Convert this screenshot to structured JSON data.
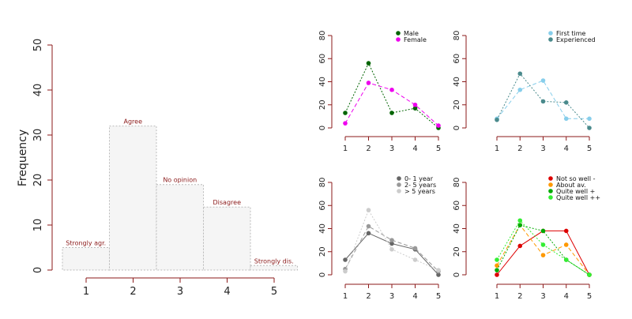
{
  "chart_data": [
    {
      "type": "bar",
      "title": "",
      "xlabel": "",
      "ylabel": "Frequency",
      "categories": [
        "1",
        "2",
        "3",
        "4",
        "5"
      ],
      "values": [
        5,
        32,
        19,
        14,
        1
      ],
      "bar_labels": [
        "Strongly agr.",
        "Agree",
        "No opinion",
        "Disagree",
        "Strongly dis."
      ],
      "ylim": [
        0,
        50
      ],
      "yticks": [
        0,
        10,
        20,
        30,
        40,
        50
      ],
      "colors": {
        "fill": "#f5f5f5",
        "border": "#bbbbbb",
        "label": "#8b1a1a",
        "axis": "#8b1a1a"
      }
    },
    {
      "type": "line",
      "x": [
        1,
        2,
        3,
        4,
        5
      ],
      "ylim": [
        0,
        80
      ],
      "yticks": [
        0,
        20,
        40,
        60,
        80
      ],
      "legend_position": "top-right",
      "series": [
        {
          "name": "Male",
          "values": [
            13,
            56,
            13,
            17,
            0
          ],
          "color": "#006400",
          "dash": "dotted"
        },
        {
          "name": "Female",
          "values": [
            4,
            39,
            33,
            20,
            2
          ],
          "color": "#ee00ee",
          "dash": "dashed"
        }
      ]
    },
    {
      "type": "line",
      "x": [
        1,
        2,
        3,
        4,
        5
      ],
      "ylim": [
        0,
        80
      ],
      "yticks": [
        0,
        20,
        40,
        60,
        80
      ],
      "legend_position": "top-right",
      "series": [
        {
          "name": "First time",
          "values": [
            8,
            33,
            41,
            8,
            8
          ],
          "color": "#87ceeb",
          "dash": "dashed"
        },
        {
          "name": "Experienced",
          "values": [
            7,
            47,
            23,
            22,
            0
          ],
          "color": "#4a8a8c",
          "dash": "dotted"
        }
      ]
    },
    {
      "type": "line",
      "x": [
        1,
        2,
        3,
        4,
        5
      ],
      "ylim": [
        0,
        80
      ],
      "yticks": [
        0,
        20,
        40,
        60,
        80
      ],
      "legend_position": "top-right",
      "series": [
        {
          "name": "0- 1 year",
          "values": [
            13,
            36,
            27,
            22,
            0
          ],
          "color": "#666666",
          "dash": "solid"
        },
        {
          "name": "2- 5 years",
          "values": [
            5,
            42,
            30,
            23,
            3
          ],
          "color": "#999999",
          "dash": "dashed"
        },
        {
          "name": "> 5 years",
          "values": [
            3,
            56,
            22,
            13,
            4
          ],
          "color": "#cccccc",
          "dash": "dotted"
        }
      ]
    },
    {
      "type": "line",
      "x": [
        1,
        2,
        3,
        4,
        5
      ],
      "ylim": [
        0,
        80
      ],
      "yticks": [
        0,
        20,
        40,
        60,
        80
      ],
      "legend_position": "top-right",
      "series": [
        {
          "name": "Not so well -",
          "values": [
            0,
            25,
            38,
            38,
            0
          ],
          "color": "#dd0000",
          "dash": "solid"
        },
        {
          "name": "About av.",
          "values": [
            8,
            43,
            17,
            26,
            0
          ],
          "color": "#ff9900",
          "dash": "dashed"
        },
        {
          "name": "Quite well +",
          "values": [
            4,
            43,
            38,
            13,
            0
          ],
          "color": "#00aa00",
          "dash": "dotted"
        },
        {
          "name": "Quite well ++",
          "values": [
            13,
            47,
            26,
            13,
            0
          ],
          "color": "#33ee33",
          "dash": "dotted"
        }
      ]
    }
  ]
}
